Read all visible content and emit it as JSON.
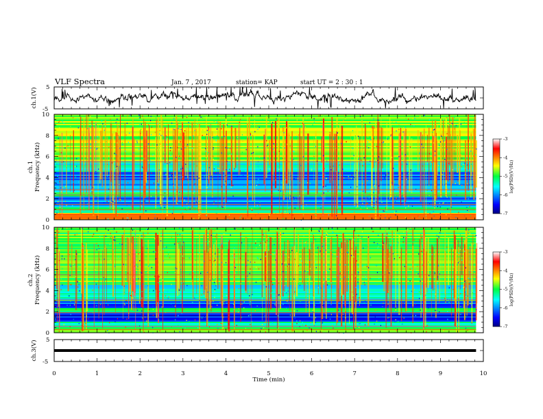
{
  "header": {
    "title": "VLF Spectra",
    "date": "Jan. 7 , 2017",
    "station": "station= KAP",
    "start": "start UT =  2 : 30 : 1"
  },
  "chart_data": [
    {
      "type": "line",
      "panel": "ch1-waveform",
      "ylabel": "ch.1(V)",
      "ylim": [
        -5,
        5
      ],
      "yticks": [
        "5",
        "-5"
      ],
      "xlim": [
        0,
        10
      ],
      "data_xrange": [
        0,
        9.83
      ],
      "series_color": "#000000",
      "y_level": 0
    },
    {
      "type": "heatmap",
      "panel": "ch1-spectrogram",
      "ylabel_top": "ch.1",
      "ylabel": "Frequency (kHz)",
      "ylim": [
        0,
        10
      ],
      "yticks": [
        "0",
        "2",
        "4",
        "6",
        "8",
        "10"
      ],
      "xlim": [
        0,
        10
      ],
      "data_xrange": [
        0,
        9.83
      ],
      "colorbar": {
        "label": "log(PSD)(V²/Hz)",
        "range": [
          -7,
          -3
        ],
        "ticks": [
          "-3",
          "-4",
          "-5",
          "-6",
          "-7"
        ]
      },
      "bands": [
        {
          "from": 0,
          "to": 0.6,
          "level": -4.2
        },
        {
          "from": 0.6,
          "to": 1.2,
          "level": -5.3
        },
        {
          "from": 1.2,
          "to": 2.2,
          "level": -6.0
        },
        {
          "from": 2.2,
          "to": 2.6,
          "level": -5.0
        },
        {
          "from": 2.6,
          "to": 3.2,
          "level": -5.6
        },
        {
          "from": 3.2,
          "to": 4.5,
          "level": -6.1
        },
        {
          "from": 4.5,
          "to": 5.6,
          "level": -5.4
        },
        {
          "from": 5.6,
          "to": 10,
          "level": -4.7
        }
      ],
      "lines_khz": [
        0.3,
        0.55,
        0.95,
        1.45,
        2.35,
        2.85,
        5.5
      ]
    },
    {
      "type": "heatmap",
      "panel": "ch2-spectrogram",
      "ylabel_top": "ch.2",
      "ylabel": "Frequency (kHz)",
      "ylim": [
        0,
        10
      ],
      "yticks": [
        "0",
        "2",
        "4",
        "6",
        "8",
        "10"
      ],
      "xlim": [
        0,
        10
      ],
      "data_xrange": [
        0,
        9.83
      ],
      "colorbar": {
        "label": "log(PSD)(V²/Hz)",
        "range": [
          -7,
          -3
        ],
        "ticks": [
          "-3",
          "-4",
          "-5",
          "-6",
          "-7"
        ]
      },
      "bands": [
        {
          "from": 0,
          "to": 0.5,
          "level": -4.8
        },
        {
          "from": 0.5,
          "to": 1.0,
          "level": -5.4
        },
        {
          "from": 1.0,
          "to": 1.9,
          "level": -6.4
        },
        {
          "from": 1.9,
          "to": 2.3,
          "level": -5.0
        },
        {
          "from": 2.3,
          "to": 3.0,
          "level": -6.2
        },
        {
          "from": 3.0,
          "to": 4.5,
          "level": -5.5
        },
        {
          "from": 4.5,
          "to": 10,
          "level": -4.9
        }
      ],
      "lines_khz": [
        0.3,
        0.6,
        1.9,
        3.1,
        5.5
      ]
    },
    {
      "type": "line",
      "panel": "ch3-waveform",
      "ylabel": "ch.3(V)",
      "ylim": [
        -5,
        5
      ],
      "yticks": [
        "5",
        "-5"
      ],
      "xlim": [
        0,
        10
      ],
      "xticks": [
        "0",
        "1",
        "2",
        "3",
        "4",
        "5",
        "6",
        "7",
        "8",
        "9",
        "10"
      ],
      "xlabel": "Time (min)",
      "data_xrange": [
        0,
        9.83
      ],
      "series_color": "#000000",
      "y_level": 0
    }
  ]
}
